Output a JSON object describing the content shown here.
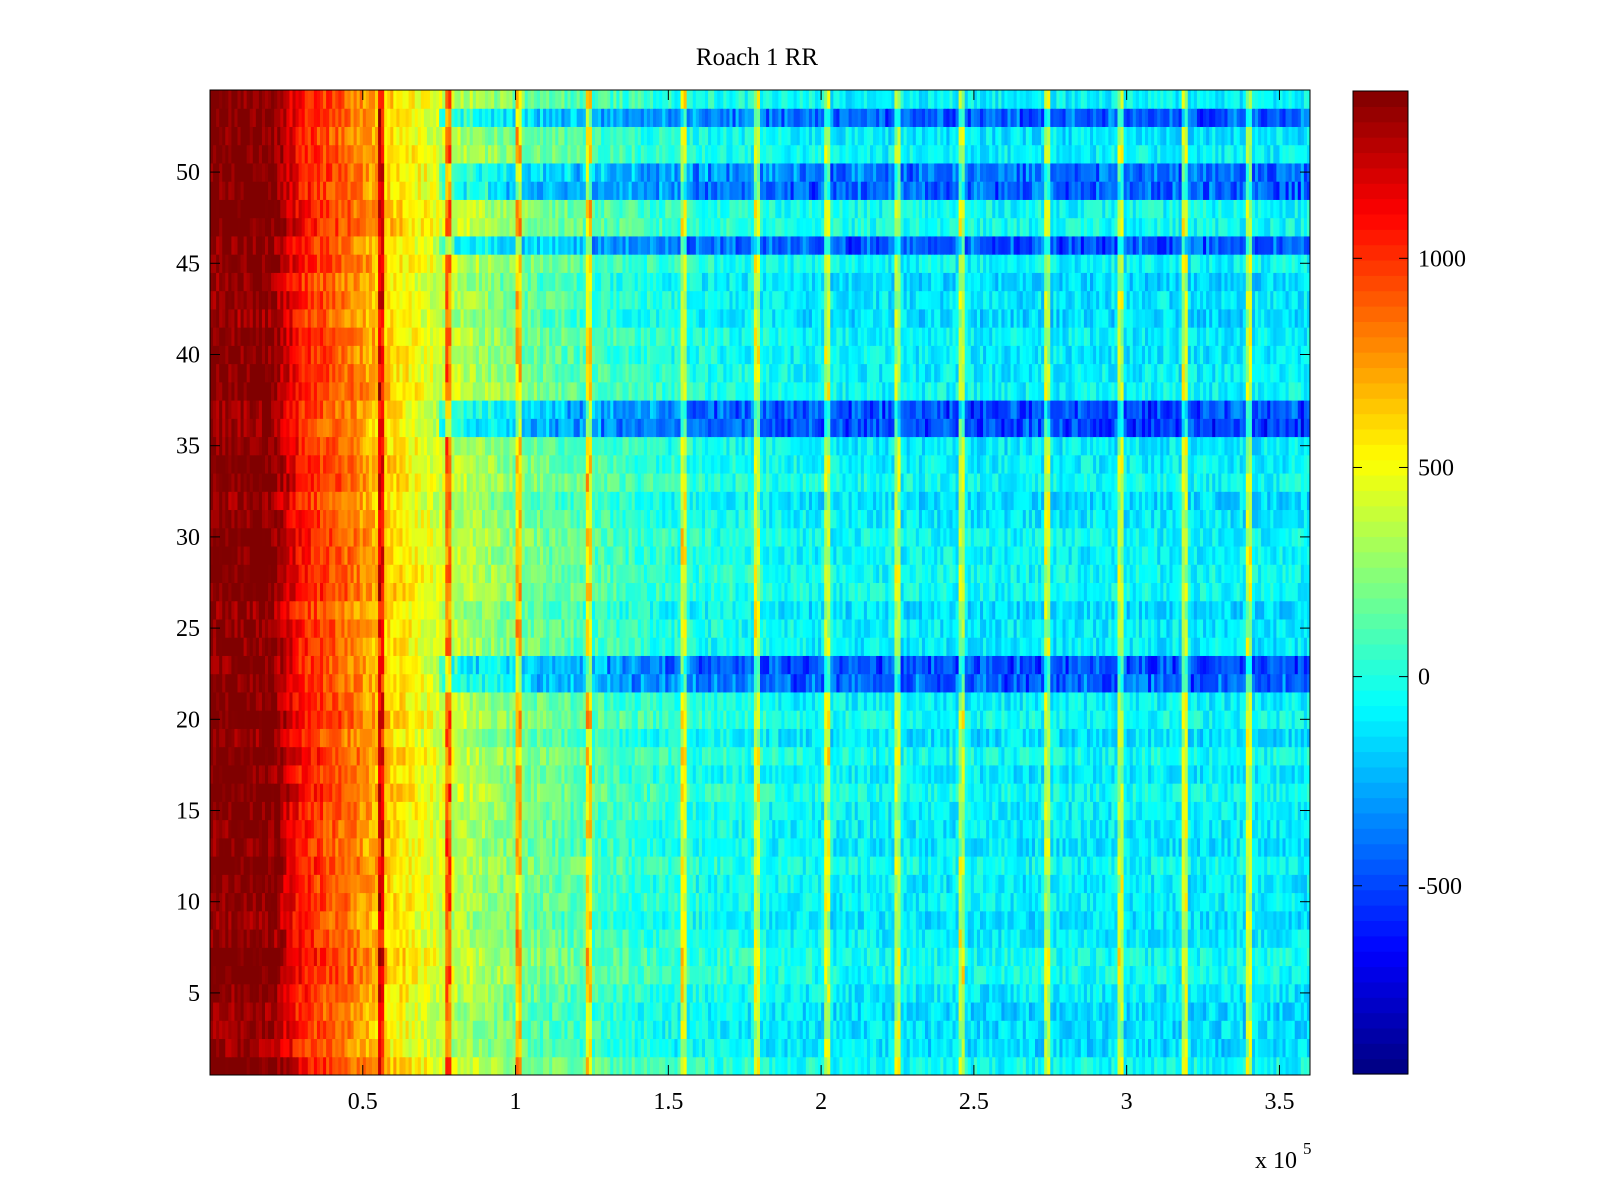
{
  "chart_data": {
    "type": "heatmap",
    "title": "Roach 1 RR",
    "xlabel": "",
    "ylabel": "",
    "x_exponent_label": "x 10",
    "x_exponent_power": "5",
    "x_multiplier": 100000,
    "xlim": [
      0,
      3.6
    ],
    "ylim": [
      0.5,
      54.5
    ],
    "rows": 54,
    "x_ticks": [
      0.5,
      1,
      1.5,
      2,
      2.5,
      3,
      3.5
    ],
    "x_tick_labels": [
      "0.5",
      "1",
      "1.5",
      "2",
      "2.5",
      "3",
      "3.5"
    ],
    "y_ticks": [
      5,
      10,
      15,
      20,
      25,
      30,
      35,
      40,
      45,
      50
    ],
    "y_tick_labels": [
      "5",
      "10",
      "15",
      "20",
      "25",
      "30",
      "35",
      "40",
      "45",
      "50"
    ],
    "colormap": "jet",
    "clim": [
      -950,
      1400
    ],
    "colorbar_ticks": [
      -500,
      0,
      500,
      1000
    ],
    "colorbar_tick_labels": [
      "-500",
      "0",
      "500",
      "1000"
    ],
    "value_trend": [
      {
        "x": 0.0,
        "value": 1400
      },
      {
        "x": 0.2,
        "value": 1400
      },
      {
        "x": 0.3,
        "value": 1050
      },
      {
        "x": 0.45,
        "value": 850
      },
      {
        "x": 0.56,
        "value": 650
      },
      {
        "x": 0.7,
        "value": 470
      },
      {
        "x": 0.78,
        "value": 380
      },
      {
        "x": 1.0,
        "value": 200
      },
      {
        "x": 1.5,
        "value": 0
      },
      {
        "x": 2.0,
        "value": -80
      },
      {
        "x": 2.5,
        "value": -100
      },
      {
        "x": 3.0,
        "value": -100
      },
      {
        "x": 3.6,
        "value": -100
      }
    ],
    "bright_columns_x": [
      0.56,
      0.78,
      1.01,
      1.24,
      1.55,
      1.79,
      2.02,
      2.25,
      2.46,
      2.74,
      2.98,
      3.19,
      3.4
    ],
    "dark_bands_rows": [
      22,
      23,
      36,
      37,
      46,
      49,
      50,
      53
    ]
  }
}
